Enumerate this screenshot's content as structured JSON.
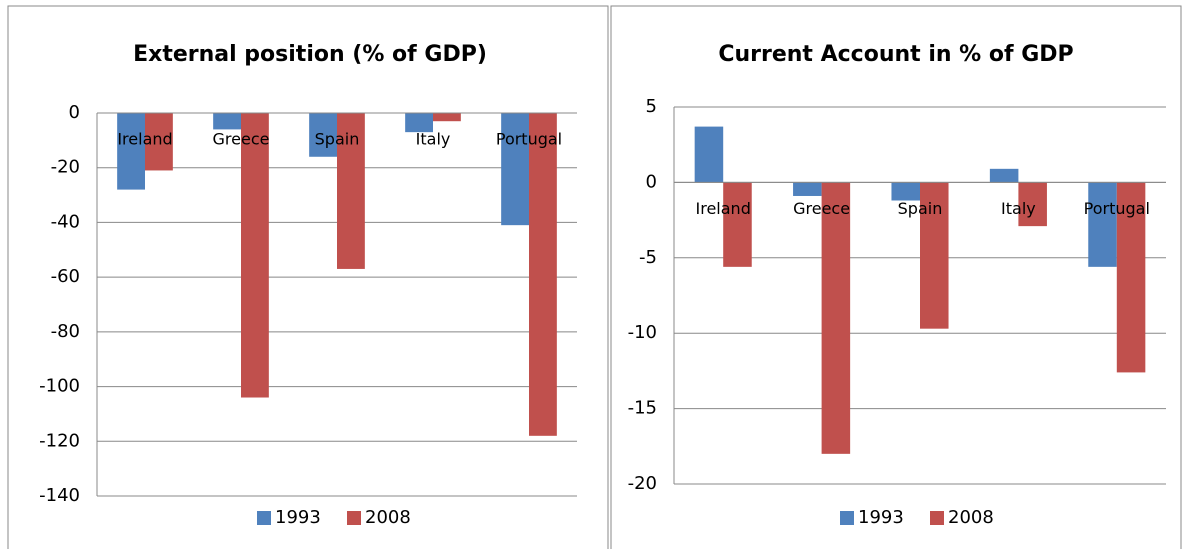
{
  "chart_data": [
    {
      "type": "bar",
      "title": "External position (% of GDP)",
      "categories": [
        "Ireland",
        "Greece",
        "Spain",
        "Italy",
        "Portugal"
      ],
      "series": [
        {
          "name": "1993",
          "color": "#4f81bd",
          "values": [
            -28,
            -6,
            -16,
            -7,
            -41
          ]
        },
        {
          "name": "2008",
          "color": "#c0504d",
          "values": [
            -21,
            -104,
            -57,
            -3,
            -118
          ]
        }
      ],
      "ylim": [
        -140,
        0
      ],
      "yticks": [
        0,
        -20,
        -40,
        -60,
        -80,
        -100,
        -120,
        -140
      ],
      "grid": true,
      "legend": "bottom"
    },
    {
      "type": "bar",
      "title": "Current Account in % of GDP",
      "categories": [
        "Ireland",
        "Greece",
        "Spain",
        "Italy",
        "Portugal"
      ],
      "series": [
        {
          "name": "1993",
          "color": "#4f81bd",
          "values": [
            3.7,
            -0.9,
            -1.2,
            0.9,
            -5.6
          ]
        },
        {
          "name": "2008",
          "color": "#c0504d",
          "values": [
            -5.6,
            -18,
            -9.7,
            -2.9,
            -12.6
          ]
        }
      ],
      "ylim": [
        -20,
        5
      ],
      "yticks": [
        5,
        0,
        -5,
        -10,
        -15,
        -20
      ],
      "grid": true,
      "legend": "bottom"
    }
  ]
}
